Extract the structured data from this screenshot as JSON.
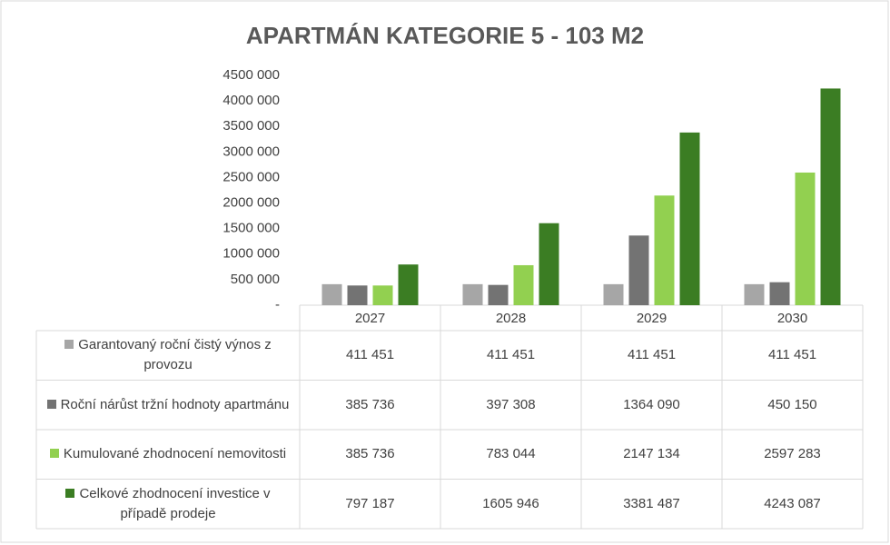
{
  "chart_data": {
    "type": "bar",
    "title": "APARTMÁN KATEGORIE 5 - 103 M2",
    "categories": [
      "2027",
      "2028",
      "2029",
      "2030"
    ],
    "series": [
      {
        "name": "Garantovaný roční čistý výnos z provozu",
        "color": "#a6a6a6",
        "values": [
          411451,
          411451,
          411451,
          411451
        ],
        "value_labels": [
          "411 451",
          "411 451",
          "411 451",
          "411 451"
        ]
      },
      {
        "name": "Roční nárůst tržní hodnoty apartmánu",
        "color": "#737373",
        "values": [
          385736,
          397308,
          1364090,
          450150
        ],
        "value_labels": [
          "385 736",
          "397 308",
          "1364 090",
          "450 150"
        ]
      },
      {
        "name": "Kumulované zhodnocení nemovitosti",
        "color": "#92d050",
        "values": [
          385736,
          783044,
          2147134,
          2597283
        ],
        "value_labels": [
          "385 736",
          "783 044",
          "2147 134",
          "2597 283"
        ]
      },
      {
        "name": "Celkové zhodnocení investice v případě prodeje",
        "color": "#3b7d23",
        "values": [
          797187,
          1605946,
          3381487,
          4243087
        ],
        "value_labels": [
          "797 187",
          "1605 946",
          "3381 487",
          "4243 087"
        ]
      }
    ],
    "ylim": [
      0,
      4500000
    ],
    "yticks": [
      {
        "value": 0,
        "label": "-"
      },
      {
        "value": 500000,
        "label": "500 000"
      },
      {
        "value": 1000000,
        "label": "1000 000"
      },
      {
        "value": 1500000,
        "label": "1500 000"
      },
      {
        "value": 2000000,
        "label": "2000 000"
      },
      {
        "value": 2500000,
        "label": "2500 000"
      },
      {
        "value": 3000000,
        "label": "3000 000"
      },
      {
        "value": 3500000,
        "label": "3500 000"
      },
      {
        "value": 4000000,
        "label": "4000 000"
      },
      {
        "value": 4500000,
        "label": "4500 000"
      }
    ],
    "grid": false
  }
}
